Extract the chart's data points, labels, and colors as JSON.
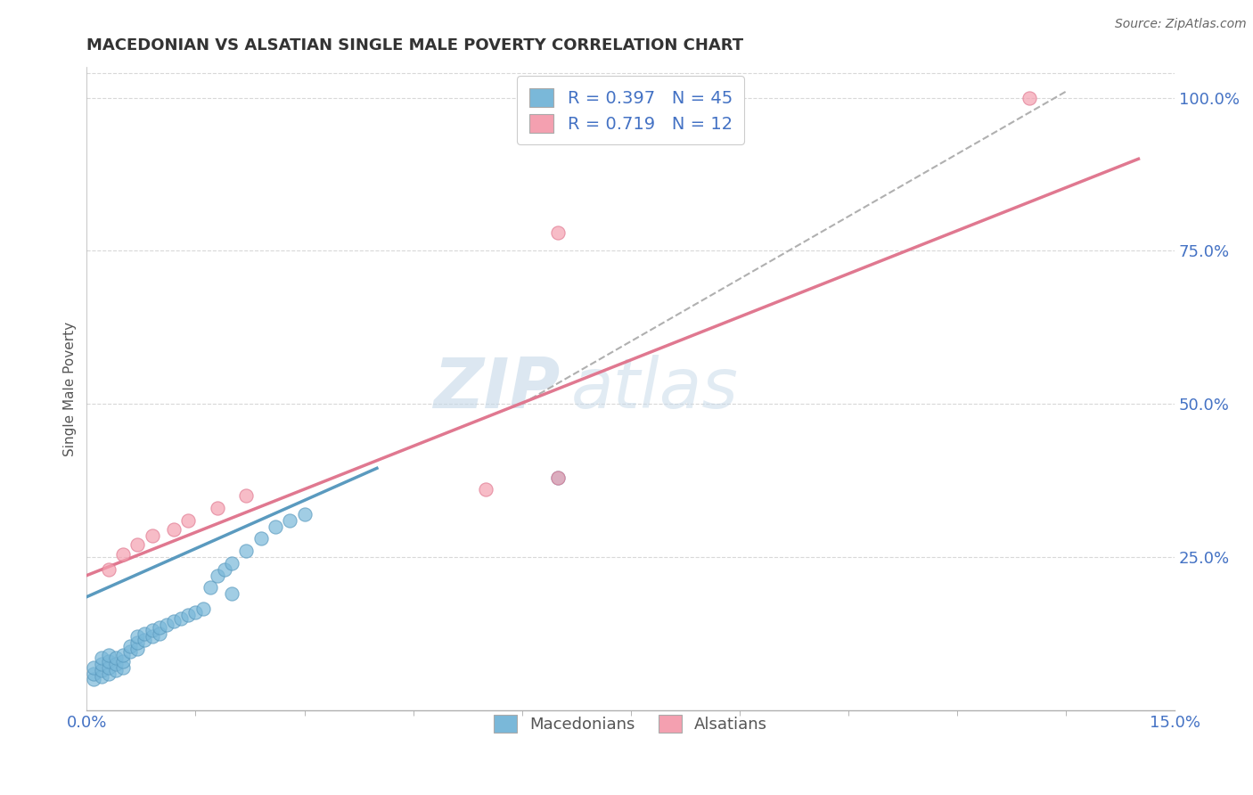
{
  "title": "MACEDONIAN VS ALSATIAN SINGLE MALE POVERTY CORRELATION CHART",
  "source_text": "Source: ZipAtlas.com",
  "ylabel": "Single Male Poverty",
  "xlim": [
    0.0,
    0.15
  ],
  "ylim": [
    0.0,
    1.05
  ],
  "x_ticks": [
    0.0,
    0.15
  ],
  "x_tick_labels": [
    "0.0%",
    "15.0%"
  ],
  "y_ticks": [
    0.25,
    0.5,
    0.75,
    1.0
  ],
  "y_tick_labels": [
    "25.0%",
    "50.0%",
    "75.0%",
    "100.0%"
  ],
  "mac_color": "#7ab8d9",
  "mac_edge_color": "#5a9abf",
  "als_color": "#f4a0b0",
  "als_edge_color": "#e07890",
  "mac_R": 0.397,
  "mac_N": 45,
  "als_R": 0.719,
  "als_N": 12,
  "mac_scatter_x": [
    0.001,
    0.001,
    0.001,
    0.002,
    0.002,
    0.002,
    0.002,
    0.003,
    0.003,
    0.003,
    0.003,
    0.004,
    0.004,
    0.004,
    0.005,
    0.005,
    0.005,
    0.006,
    0.006,
    0.007,
    0.007,
    0.007,
    0.008,
    0.008,
    0.009,
    0.009,
    0.01,
    0.01,
    0.011,
    0.012,
    0.013,
    0.014,
    0.015,
    0.016,
    0.017,
    0.018,
    0.019,
    0.02,
    0.022,
    0.024,
    0.026,
    0.028,
    0.03,
    0.065,
    0.02
  ],
  "mac_scatter_y": [
    0.05,
    0.06,
    0.07,
    0.055,
    0.065,
    0.075,
    0.085,
    0.06,
    0.07,
    0.08,
    0.09,
    0.065,
    0.075,
    0.085,
    0.07,
    0.08,
    0.09,
    0.095,
    0.105,
    0.1,
    0.11,
    0.12,
    0.115,
    0.125,
    0.12,
    0.13,
    0.125,
    0.135,
    0.14,
    0.145,
    0.15,
    0.155,
    0.16,
    0.165,
    0.2,
    0.22,
    0.23,
    0.24,
    0.26,
    0.28,
    0.3,
    0.31,
    0.32,
    0.38,
    0.19
  ],
  "als_scatter_x": [
    0.003,
    0.005,
    0.007,
    0.009,
    0.012,
    0.014,
    0.018,
    0.022,
    0.055,
    0.065,
    0.065,
    0.13
  ],
  "als_scatter_y": [
    0.23,
    0.255,
    0.27,
    0.285,
    0.295,
    0.31,
    0.33,
    0.35,
    0.36,
    0.38,
    0.78,
    1.0
  ],
  "mac_line_x": [
    0.0,
    0.04
  ],
  "mac_line_y": [
    0.185,
    0.395
  ],
  "als_line_x": [
    0.0,
    0.145
  ],
  "als_line_y": [
    0.22,
    0.9
  ],
  "dash_line_x": [
    0.06,
    0.135
  ],
  "dash_line_y": [
    0.5,
    1.01
  ],
  "grid_color": "#d8d8d8",
  "watermark_zip": "ZIP",
  "watermark_atlas": "atlas",
  "watermark_color_zip": "#c5d8e8",
  "watermark_color_atlas": "#c5d8e8"
}
